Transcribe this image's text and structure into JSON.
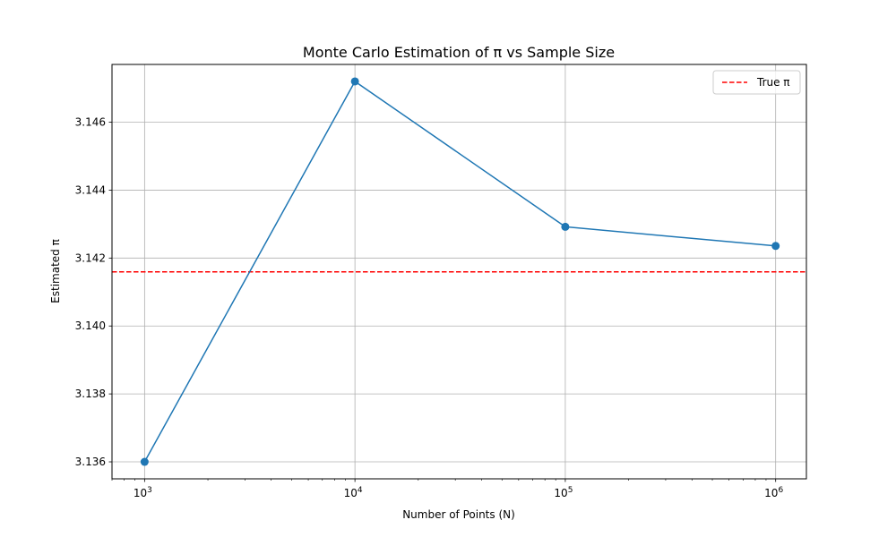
{
  "chart_data": {
    "type": "line",
    "title": "Monte Carlo Estimation of π vs Sample Size",
    "xlabel": "Number of Points (N)",
    "ylabel": "Estimated π",
    "xscale": "log",
    "grid": true,
    "legend_position": "top-right",
    "xlim": [
      700,
      1400000
    ],
    "ylim": [
      3.1355,
      3.1477
    ],
    "x_ticks": [
      {
        "value": 1000,
        "base": "10",
        "exp": "3"
      },
      {
        "value": 10000,
        "base": "10",
        "exp": "4"
      },
      {
        "value": 100000,
        "base": "10",
        "exp": "5"
      },
      {
        "value": 1000000,
        "base": "10",
        "exp": "6"
      }
    ],
    "y_ticks": [
      {
        "value": 3.136,
        "label": "3.136"
      },
      {
        "value": 3.138,
        "label": "3.138"
      },
      {
        "value": 3.14,
        "label": "3.140"
      },
      {
        "value": 3.142,
        "label": "3.142"
      },
      {
        "value": 3.144,
        "label": "3.144"
      },
      {
        "value": 3.146,
        "label": "3.146"
      }
    ],
    "series": [
      {
        "x": [
          1000,
          10000,
          100000,
          1000000
        ],
        "y": [
          3.136,
          3.1472,
          3.14292,
          3.142356
        ],
        "color": "#1f77b4",
        "marker": "circle"
      }
    ],
    "reference_lines": [
      {
        "name": "True π",
        "y": 3.14159265,
        "color": "#ff0000",
        "style": "dashed"
      }
    ]
  }
}
